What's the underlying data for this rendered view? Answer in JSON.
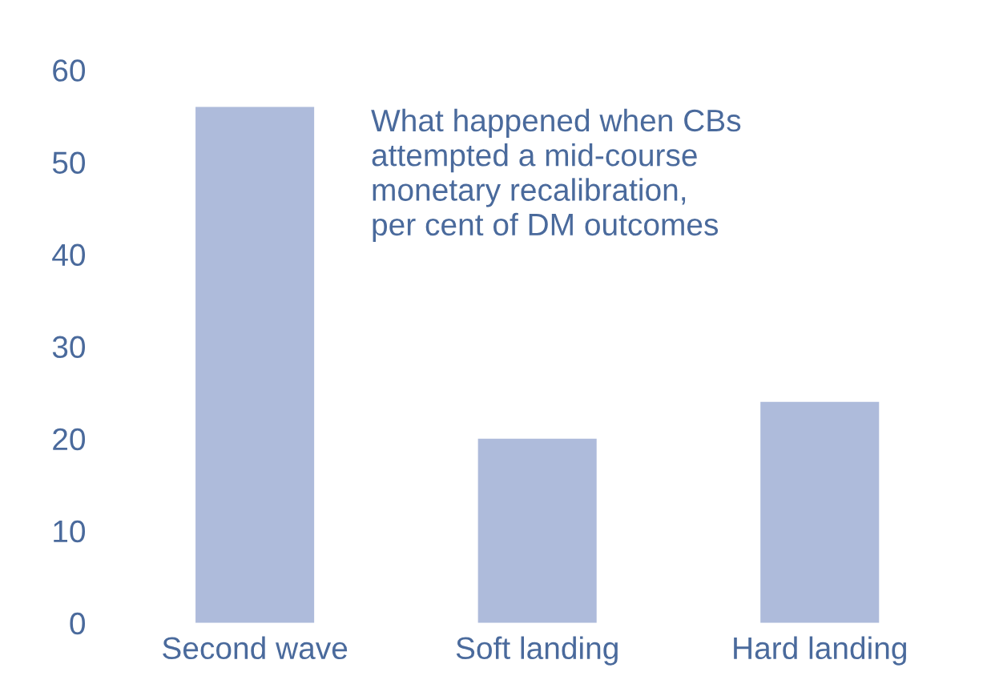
{
  "chart_data": {
    "type": "bar",
    "categories": [
      "Second wave",
      "Soft landing",
      "Hard landing"
    ],
    "values": [
      56,
      20,
      24
    ],
    "color": "#aebbdb",
    "ylim": [
      0,
      60
    ],
    "yticks": [
      0,
      10,
      20,
      30,
      40,
      50,
      60
    ],
    "grid": false,
    "annotations": [
      "What happened when CBs\nattempted a mid-course\nmonetary recalibration,\nper cent of DM outcomes"
    ]
  }
}
